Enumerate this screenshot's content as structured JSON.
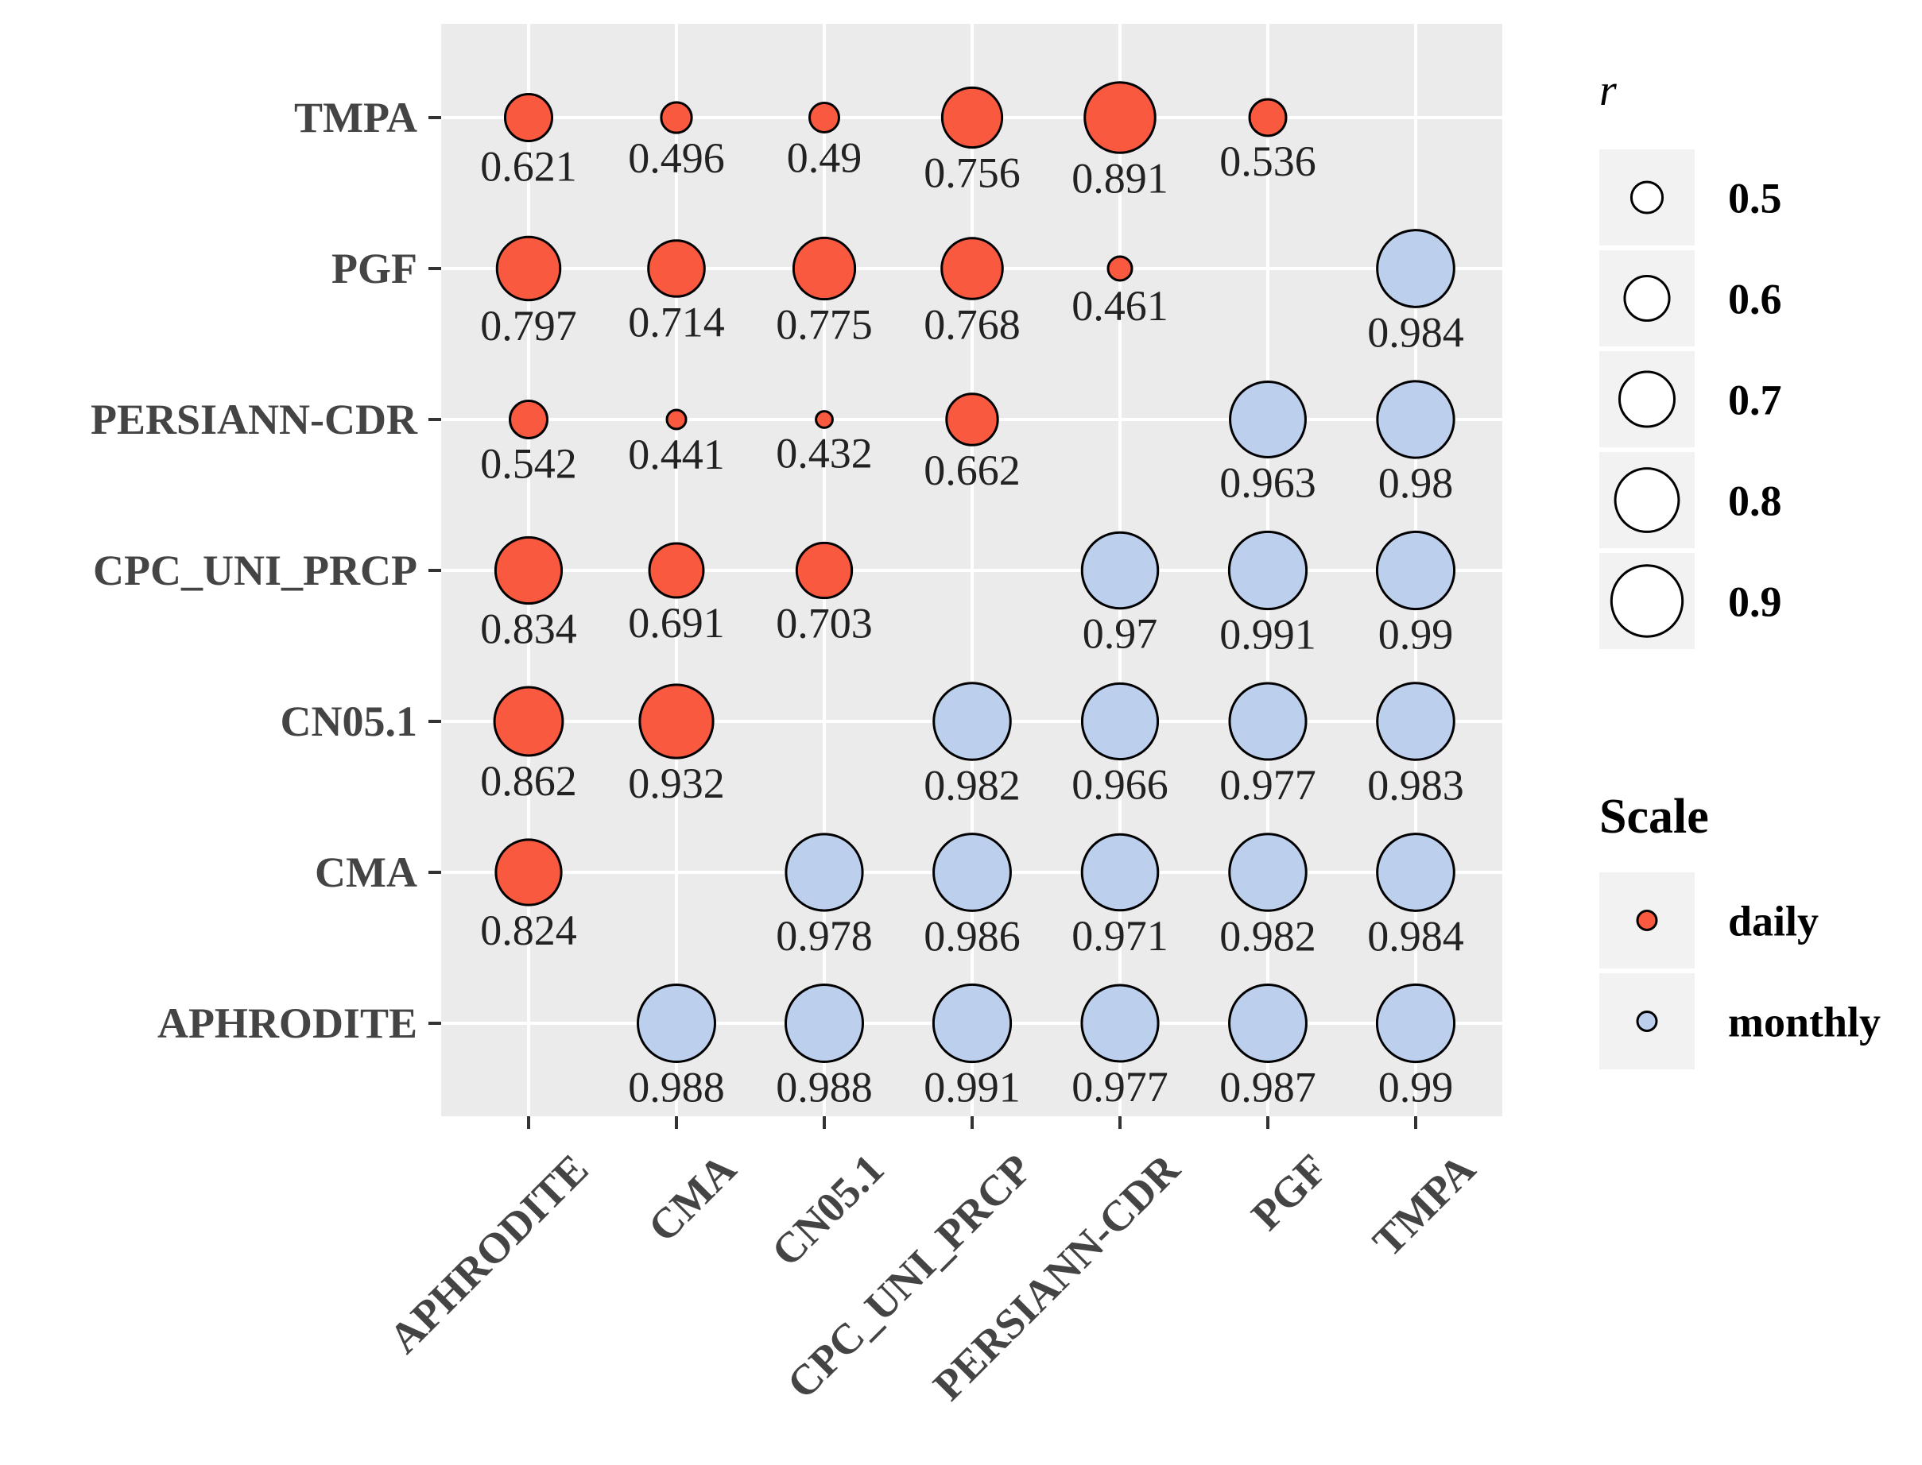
{
  "chart_data": {
    "type": "scatter",
    "title": "",
    "xlabel": "",
    "ylabel": "",
    "x_categories": [
      "APHRODITE",
      "CMA",
      "CN05.1",
      "CPC_UNI_PRCP",
      "PERSIANN-CDR",
      "PGF",
      "TMPA"
    ],
    "y_categories": [
      "APHRODITE",
      "CMA",
      "CN05.1",
      "CPC_UNI_PRCP",
      "PERSIANN-CDR",
      "PGF",
      "TMPA"
    ],
    "grid": true,
    "series": [
      {
        "name": "daily",
        "color": "#f8593f",
        "points": [
          {
            "x": "APHRODITE",
            "y": "TMPA",
            "r": 0.621,
            "label": "0.621"
          },
          {
            "x": "CMA",
            "y": "TMPA",
            "r": 0.496,
            "label": "0.496"
          },
          {
            "x": "CN05.1",
            "y": "TMPA",
            "r": 0.49,
            "label": "0.49"
          },
          {
            "x": "CPC_UNI_PRCP",
            "y": "TMPA",
            "r": 0.756,
            "label": "0.756"
          },
          {
            "x": "PERSIANN-CDR",
            "y": "TMPA",
            "r": 0.891,
            "label": "0.891"
          },
          {
            "x": "PGF",
            "y": "TMPA",
            "r": 0.536,
            "label": "0.536"
          },
          {
            "x": "APHRODITE",
            "y": "PGF",
            "r": 0.797,
            "label": "0.797"
          },
          {
            "x": "CMA",
            "y": "PGF",
            "r": 0.714,
            "label": "0.714"
          },
          {
            "x": "CN05.1",
            "y": "PGF",
            "r": 0.775,
            "label": "0.775"
          },
          {
            "x": "CPC_UNI_PRCP",
            "y": "PGF",
            "r": 0.768,
            "label": "0.768"
          },
          {
            "x": "PERSIANN-CDR",
            "y": "PGF",
            "r": 0.461,
            "label": "0.461"
          },
          {
            "x": "APHRODITE",
            "y": "PERSIANN-CDR",
            "r": 0.542,
            "label": "0.542"
          },
          {
            "x": "CMA",
            "y": "PERSIANN-CDR",
            "r": 0.441,
            "label": "0.441"
          },
          {
            "x": "CN05.1",
            "y": "PERSIANN-CDR",
            "r": 0.432,
            "label": "0.432"
          },
          {
            "x": "CPC_UNI_PRCP",
            "y": "PERSIANN-CDR",
            "r": 0.662,
            "label": "0.662"
          },
          {
            "x": "APHRODITE",
            "y": "CPC_UNI_PRCP",
            "r": 0.834,
            "label": "0.834"
          },
          {
            "x": "CMA",
            "y": "CPC_UNI_PRCP",
            "r": 0.691,
            "label": "0.691"
          },
          {
            "x": "CN05.1",
            "y": "CPC_UNI_PRCP",
            "r": 0.703,
            "label": "0.703"
          },
          {
            "x": "APHRODITE",
            "y": "CN05.1",
            "r": 0.862,
            "label": "0.862"
          },
          {
            "x": "CMA",
            "y": "CN05.1",
            "r": 0.932,
            "label": "0.932"
          },
          {
            "x": "APHRODITE",
            "y": "CMA",
            "r": 0.824,
            "label": "0.824"
          }
        ]
      },
      {
        "name": "monthly",
        "color": "#bcd0ee",
        "points": [
          {
            "x": "TMPA",
            "y": "PGF",
            "r": 0.984,
            "label": "0.984"
          },
          {
            "x": "PGF",
            "y": "PERSIANN-CDR",
            "r": 0.963,
            "label": "0.963"
          },
          {
            "x": "TMPA",
            "y": "PERSIANN-CDR",
            "r": 0.98,
            "label": "0.98"
          },
          {
            "x": "PERSIANN-CDR",
            "y": "CPC_UNI_PRCP",
            "r": 0.97,
            "label": "0.97"
          },
          {
            "x": "PGF",
            "y": "CPC_UNI_PRCP",
            "r": 0.991,
            "label": "0.991"
          },
          {
            "x": "TMPA",
            "y": "CPC_UNI_PRCP",
            "r": 0.99,
            "label": "0.99"
          },
          {
            "x": "CPC_UNI_PRCP",
            "y": "CN05.1",
            "r": 0.982,
            "label": "0.982"
          },
          {
            "x": "PERSIANN-CDR",
            "y": "CN05.1",
            "r": 0.966,
            "label": "0.966"
          },
          {
            "x": "PGF",
            "y": "CN05.1",
            "r": 0.977,
            "label": "0.977"
          },
          {
            "x": "TMPA",
            "y": "CN05.1",
            "r": 0.983,
            "label": "0.983"
          },
          {
            "x": "CN05.1",
            "y": "CMA",
            "r": 0.978,
            "label": "0.978"
          },
          {
            "x": "CPC_UNI_PRCP",
            "y": "CMA",
            "r": 0.986,
            "label": "0.986"
          },
          {
            "x": "PERSIANN-CDR",
            "y": "CMA",
            "r": 0.971,
            "label": "0.971"
          },
          {
            "x": "PGF",
            "y": "CMA",
            "r": 0.982,
            "label": "0.982"
          },
          {
            "x": "TMPA",
            "y": "CMA",
            "r": 0.984,
            "label": "0.984"
          },
          {
            "x": "CMA",
            "y": "APHRODITE",
            "r": 0.988,
            "label": "0.988"
          },
          {
            "x": "CN05.1",
            "y": "APHRODITE",
            "r": 0.988,
            "label": "0.988"
          },
          {
            "x": "CPC_UNI_PRCP",
            "y": "APHRODITE",
            "r": 0.991,
            "label": "0.991"
          },
          {
            "x": "PERSIANN-CDR",
            "y": "APHRODITE",
            "r": 0.977,
            "label": "0.977"
          },
          {
            "x": "PGF",
            "y": "APHRODITE",
            "r": 0.987,
            "label": "0.987"
          },
          {
            "x": "TMPA",
            "y": "APHRODITE",
            "r": 0.99,
            "label": "0.99"
          }
        ]
      }
    ],
    "size_range": [
      0.43,
      1.0
    ],
    "legend": {
      "position": "right",
      "size_title": "r",
      "size_breaks": [
        0.5,
        0.6,
        0.7,
        0.8,
        0.9
      ],
      "size_labels": [
        "0.5",
        "0.6",
        "0.7",
        "0.8",
        "0.9"
      ],
      "color_title": "Scale",
      "color_labels": [
        "daily",
        "monthly"
      ]
    }
  },
  "colors": {
    "panel_bg": "#ebebeb",
    "grid": "#ffffff",
    "legend_key_bg": "#f2f2f2",
    "tick": "#333333",
    "point_stroke": "#000000"
  }
}
